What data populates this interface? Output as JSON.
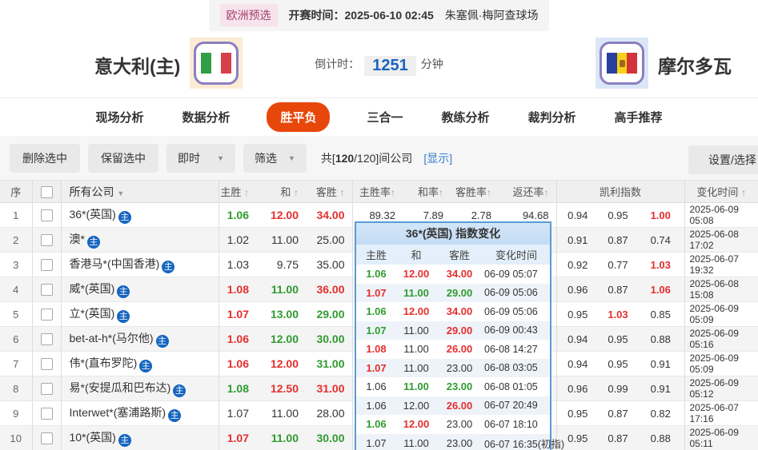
{
  "match_header": {
    "league": "欧洲预选",
    "kickoff_label": "开赛时间：",
    "kickoff_time": "2025-06-10 02:45",
    "venue": "朱塞佩·梅阿查球场",
    "home_team": "意大利(主)",
    "away_team": "摩尔多瓦",
    "countdown_label": "倒计时：",
    "countdown_value": "1251",
    "countdown_unit": "分钟"
  },
  "tabs": [
    {
      "label": "现场分析",
      "active": false
    },
    {
      "label": "数据分析",
      "active": false
    },
    {
      "label": "胜平负",
      "active": true
    },
    {
      "label": "三合一",
      "active": false
    },
    {
      "label": "教练分析",
      "active": false
    },
    {
      "label": "裁判分析",
      "active": false
    },
    {
      "label": "高手推荐",
      "active": false
    }
  ],
  "toolbar": {
    "delete_selected": "删除选中",
    "keep_selected": "保留选中",
    "time_filter_value": "即时",
    "filter_label": "筛选",
    "count_prefix": "共[",
    "count_bold": "120",
    "count_suffix": "/120]间公司",
    "show_link": "[显示]",
    "settings_label": "设置/选择"
  },
  "table": {
    "host_icon_label": "主",
    "headers": {
      "seq": "序",
      "company": "所有公司",
      "home": "主胜",
      "draw": "和",
      "away": "客胜",
      "home_rate": "主胜率",
      "draw_rate": "和率",
      "away_rate": "客胜率",
      "return_rate": "返还率",
      "kelly": "凯利指数",
      "change_time": "变化时间"
    },
    "rows": [
      {
        "seq": "1",
        "company": "36*(英国)",
        "odds": [
          [
            "1.06",
            "g"
          ],
          [
            "12.00",
            "r"
          ],
          [
            "34.00",
            "r"
          ]
        ],
        "rates": [
          "89.32",
          "7.89",
          "2.78",
          "94.68"
        ],
        "kelly": [
          [
            "0.94",
            "k"
          ],
          [
            "0.95",
            "k"
          ],
          [
            "1.00",
            "r"
          ]
        ],
        "time": "2025-06-09 05:08"
      },
      {
        "seq": "2",
        "company": "澳*",
        "odds": [
          [
            "1.02",
            "k"
          ],
          [
            "11.00",
            "k"
          ],
          [
            "25.00",
            "k"
          ]
        ],
        "rates": [
          "",
          "",
          "",
          ""
        ],
        "kelly": [
          [
            "0.91",
            "k"
          ],
          [
            "0.87",
            "k"
          ],
          [
            "0.74",
            "k"
          ]
        ],
        "time": "2025-06-08 17:02"
      },
      {
        "seq": "3",
        "company": "香港马*(中国香港)",
        "odds": [
          [
            "1.03",
            "k"
          ],
          [
            "9.75",
            "k"
          ],
          [
            "35.00",
            "k"
          ]
        ],
        "rates": [
          "",
          "",
          "",
          ""
        ],
        "kelly": [
          [
            "0.92",
            "k"
          ],
          [
            "0.77",
            "k"
          ],
          [
            "1.03",
            "r"
          ]
        ],
        "time": "2025-06-07 19:32"
      },
      {
        "seq": "4",
        "company": "威*(英国)",
        "odds": [
          [
            "1.08",
            "r"
          ],
          [
            "11.00",
            "g"
          ],
          [
            "36.00",
            "r"
          ]
        ],
        "rates": [
          "",
          "",
          "",
          ""
        ],
        "kelly": [
          [
            "0.96",
            "k"
          ],
          [
            "0.87",
            "k"
          ],
          [
            "1.06",
            "r"
          ]
        ],
        "time": "2025-06-08 15:08"
      },
      {
        "seq": "5",
        "company": "立*(英国)",
        "odds": [
          [
            "1.07",
            "r"
          ],
          [
            "13.00",
            "g"
          ],
          [
            "29.00",
            "g"
          ]
        ],
        "rates": [
          "",
          "",
          "",
          ""
        ],
        "kelly": [
          [
            "0.95",
            "k"
          ],
          [
            "1.03",
            "r"
          ],
          [
            "0.85",
            "k"
          ]
        ],
        "time": "2025-06-09 05:09"
      },
      {
        "seq": "6",
        "company": "bet-at-h*(马尔他)",
        "odds": [
          [
            "1.06",
            "r"
          ],
          [
            "12.00",
            "g"
          ],
          [
            "30.00",
            "g"
          ]
        ],
        "rates": [
          "",
          "",
          "",
          ""
        ],
        "kelly": [
          [
            "0.94",
            "k"
          ],
          [
            "0.95",
            "k"
          ],
          [
            "0.88",
            "k"
          ]
        ],
        "time": "2025-06-09 05:16"
      },
      {
        "seq": "7",
        "company": "伟*(直布罗陀)",
        "odds": [
          [
            "1.06",
            "r"
          ],
          [
            "12.00",
            "r"
          ],
          [
            "31.00",
            "g"
          ]
        ],
        "rates": [
          "",
          "",
          "",
          ""
        ],
        "kelly": [
          [
            "0.94",
            "k"
          ],
          [
            "0.95",
            "k"
          ],
          [
            "0.91",
            "k"
          ]
        ],
        "time": "2025-06-09 05:09"
      },
      {
        "seq": "8",
        "company": "易*(安提瓜和巴布达)",
        "odds": [
          [
            "1.08",
            "g"
          ],
          [
            "12.50",
            "r"
          ],
          [
            "31.00",
            "r"
          ]
        ],
        "rates": [
          "",
          "",
          "",
          ""
        ],
        "kelly": [
          [
            "0.96",
            "k"
          ],
          [
            "0.99",
            "k"
          ],
          [
            "0.91",
            "k"
          ]
        ],
        "time": "2025-06-09 05:12"
      },
      {
        "seq": "9",
        "company": "Interwet*(塞浦路斯)",
        "odds": [
          [
            "1.07",
            "k"
          ],
          [
            "11.00",
            "k"
          ],
          [
            "28.00",
            "k"
          ]
        ],
        "rates": [
          "",
          "",
          "",
          ""
        ],
        "kelly": [
          [
            "0.95",
            "k"
          ],
          [
            "0.87",
            "k"
          ],
          [
            "0.82",
            "k"
          ]
        ],
        "time": "2025-06-07 17:16"
      },
      {
        "seq": "10",
        "company": "10*(英国)",
        "odds": [
          [
            "1.07",
            "r"
          ],
          [
            "11.00",
            "g"
          ],
          [
            "30.00",
            "g"
          ]
        ],
        "rates": [
          "",
          "",
          "",
          ""
        ],
        "kelly": [
          [
            "0.95",
            "k"
          ],
          [
            "0.87",
            "k"
          ],
          [
            "0.88",
            "k"
          ]
        ],
        "time": "2025-06-09 05:11"
      }
    ]
  },
  "popup": {
    "title": "36*(英国) 指数变化",
    "headers": [
      "主胜",
      "和",
      "客胜",
      "变化时间"
    ],
    "rows": [
      {
        "home": [
          "1.06",
          "g"
        ],
        "draw": [
          "12.00",
          "r"
        ],
        "away": [
          "34.00",
          "r"
        ],
        "time": "06-09 05:07"
      },
      {
        "home": [
          "1.07",
          "r"
        ],
        "draw": [
          "11.00",
          "g"
        ],
        "away": [
          "29.00",
          "g"
        ],
        "time": "06-09 05:06"
      },
      {
        "home": [
          "1.06",
          "g"
        ],
        "draw": [
          "12.00",
          "r"
        ],
        "away": [
          "34.00",
          "r"
        ],
        "time": "06-09 05:06"
      },
      {
        "home": [
          "1.07",
          "g"
        ],
        "draw": [
          "11.00",
          "k"
        ],
        "away": [
          "29.00",
          "r"
        ],
        "time": "06-09 00:43"
      },
      {
        "home": [
          "1.08",
          "r"
        ],
        "draw": [
          "11.00",
          "k"
        ],
        "away": [
          "26.00",
          "r"
        ],
        "time": "06-08 14:27"
      },
      {
        "home": [
          "1.07",
          "r"
        ],
        "draw": [
          "11.00",
          "k"
        ],
        "away": [
          "23.00",
          "k"
        ],
        "time": "06-08 03:05"
      },
      {
        "home": [
          "1.06",
          "k"
        ],
        "draw": [
          "11.00",
          "g"
        ],
        "away": [
          "23.00",
          "g"
        ],
        "time": "06-08 01:05"
      },
      {
        "home": [
          "1.06",
          "k"
        ],
        "draw": [
          "12.00",
          "k"
        ],
        "away": [
          "26.00",
          "r"
        ],
        "time": "06-07 20:49"
      },
      {
        "home": [
          "1.06",
          "g"
        ],
        "draw": [
          "12.00",
          "r"
        ],
        "away": [
          "23.00",
          "k"
        ],
        "time": "06-07 18:10"
      },
      {
        "home": [
          "1.07",
          "k"
        ],
        "draw": [
          "11.00",
          "k"
        ],
        "away": [
          "23.00",
          "k"
        ],
        "time": "06-07 16:35(初指)"
      }
    ]
  },
  "colors": {
    "up_red": "#e62e2e",
    "down_green": "#2e9b2e",
    "accent_orange": "#e8470b",
    "popup_border_blue": "#5b9bd5",
    "countdown_blue": "#1a66c0"
  }
}
